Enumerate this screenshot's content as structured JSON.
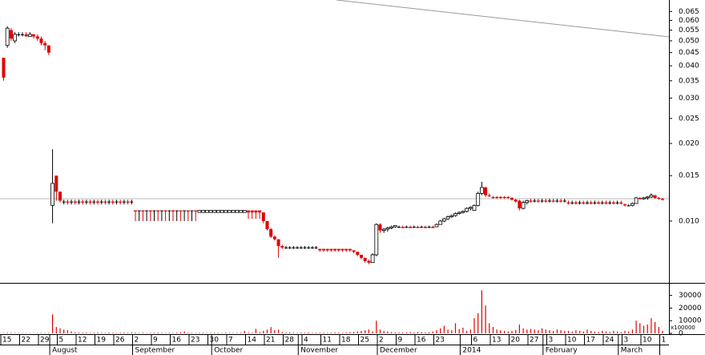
{
  "chart_data": [
    {
      "type": "candlestick",
      "log_scale": true,
      "up_color": "#000000",
      "down_color": "#e00000",
      "ylim": [
        0.0058,
        0.072
      ],
      "yticks": [
        {
          "value": 0.01,
          "label": "0.010"
        },
        0.015,
        {
          "value": 0.02,
          "label": "0.020"
        },
        0.025,
        {
          "value": 0.03,
          "label": "0.030"
        },
        0.035,
        {
          "value": 0.04,
          "label": "0.040"
        },
        0.045,
        {
          "value": 0.05,
          "label": "0.050"
        },
        0.055,
        {
          "value": 0.06,
          "label": "0.060"
        },
        0.065
      ],
      "categories": [
        "15",
        null,
        null,
        null,
        null,
        "22",
        null,
        null,
        null,
        null,
        "29",
        null,
        null,
        null,
        null,
        "5",
        null,
        null,
        null,
        null,
        "12",
        null,
        null,
        null,
        null,
        "19",
        null,
        null,
        null,
        null,
        "26",
        null,
        null,
        null,
        null,
        "2",
        null,
        null,
        null,
        null,
        "9",
        null,
        null,
        null,
        null,
        "16",
        null,
        null,
        null,
        null,
        "23",
        null,
        null,
        null,
        null,
        "30",
        null,
        null,
        null,
        null,
        "7",
        null,
        null,
        null,
        null,
        "14",
        null,
        null,
        null,
        null,
        "21",
        null,
        null,
        null,
        null,
        "28",
        null,
        null,
        null,
        null,
        "4",
        null,
        null,
        null,
        null,
        "11",
        null,
        null,
        null,
        null,
        "18",
        null,
        null,
        null,
        null,
        "25",
        null,
        null,
        null,
        null,
        "2",
        null,
        null,
        null,
        null,
        "9",
        null,
        null,
        null,
        null,
        "16",
        null,
        null,
        null,
        null,
        "23",
        null,
        null,
        null,
        null,
        null,
        null,
        null,
        null,
        null,
        "6",
        null,
        null,
        null,
        null,
        "13",
        null,
        null,
        null,
        null,
        "20",
        null,
        null,
        null,
        null,
        "27",
        null,
        null,
        null,
        null,
        "3",
        null,
        null,
        null,
        null,
        "10",
        null,
        null,
        null,
        null,
        "17",
        null,
        null,
        null,
        null,
        "24",
        null,
        null,
        null,
        null,
        "3",
        null,
        null,
        null,
        null,
        "10",
        null,
        null,
        null,
        null,
        "1"
      ],
      "month_labels": [
        null,
        null,
        null,
        null,
        null,
        null,
        null,
        null,
        null,
        null,
        null,
        null,
        null,
        "August",
        null,
        null,
        null,
        null,
        null,
        null,
        null,
        null,
        null,
        null,
        null,
        null,
        null,
        null,
        null,
        null,
        null,
        null,
        null,
        null,
        null,
        "September",
        null,
        null,
        null,
        null,
        null,
        null,
        null,
        null,
        null,
        null,
        null,
        null,
        null,
        null,
        null,
        null,
        null,
        null,
        null,
        null,
        "October",
        null,
        null,
        null,
        null,
        null,
        null,
        null,
        null,
        null,
        null,
        null,
        null,
        null,
        null,
        null,
        null,
        null,
        null,
        null,
        null,
        null,
        null,
        "November",
        null,
        null,
        null,
        null,
        null,
        null,
        null,
        null,
        null,
        null,
        null,
        null,
        null,
        null,
        null,
        null,
        null,
        null,
        null,
        null,
        "December",
        null,
        null,
        null,
        null,
        null,
        null,
        null,
        null,
        null,
        null,
        null,
        null,
        null,
        null,
        null,
        null,
        null,
        null,
        null,
        null,
        null,
        "2014",
        null,
        null,
        null,
        null,
        null,
        null,
        null,
        null,
        null,
        null,
        null,
        null,
        null,
        null,
        null,
        null,
        null,
        null,
        null,
        null,
        null,
        "February",
        null,
        null,
        null,
        null,
        null,
        null,
        null,
        null,
        null,
        null,
        null,
        null,
        null,
        null,
        null,
        null,
        null,
        null,
        null,
        "March",
        null,
        null,
        null,
        null,
        null,
        null,
        null,
        null,
        null,
        null
      ],
      "open": [
        0.043,
        0.048,
        0.055,
        0.05,
        0.053,
        0.053,
        0.053,
        0.052,
        0.053,
        0.052,
        0.051,
        0.049,
        0.048,
        0.0115,
        0.015,
        0.013,
        0.0119,
        0.0119,
        0.0119,
        0.0119,
        0.0119,
        0.0119,
        0.0119,
        0.0119,
        0.0119,
        0.0119,
        0.0119,
        0.0119,
        0.0119,
        0.0119,
        0.0119,
        0.0119,
        0.0119,
        0.0119,
        0.0119,
        0.011,
        0.011,
        0.011,
        0.011,
        0.011,
        0.011,
        0.011,
        0.011,
        0.011,
        0.011,
        0.011,
        0.011,
        0.011,
        0.011,
        0.011,
        0.011,
        0.011,
        0.0108,
        0.0108,
        0.0108,
        0.0108,
        0.0108,
        0.0108,
        0.0108,
        0.0108,
        0.0108,
        0.0108,
        0.0108,
        0.0108,
        0.0108,
        0.011,
        0.011,
        0.011,
        0.011,
        0.0108,
        0.01,
        0.0093,
        0.0087,
        0.0085,
        0.008,
        0.0079,
        0.0079,
        0.0079,
        0.0079,
        0.0079,
        0.0079,
        0.0079,
        0.0079,
        0.0079,
        0.0078,
        0.0078,
        0.0078,
        0.0078,
        0.0078,
        0.0078,
        0.0078,
        0.0078,
        0.0078,
        0.0077,
        0.0076,
        0.0074,
        0.0072,
        0.007,
        0.0069,
        0.0074,
        0.0097,
        0.0092,
        0.0093,
        0.0094,
        0.0095,
        0.0095,
        0.0095,
        0.0095,
        0.0095,
        0.0095,
        0.0095,
        0.0095,
        0.0095,
        0.0095,
        0.0095,
        0.0095,
        0.0097,
        0.01,
        0.0102,
        0.0104,
        0.0105,
        0.0107,
        0.0108,
        0.0109,
        0.0112,
        0.011,
        0.0115,
        0.0128,
        0.0135,
        0.0126,
        0.0124,
        0.0124,
        0.0124,
        0.0124,
        0.0124,
        0.0123,
        0.0121,
        0.012,
        0.0112,
        0.0118,
        0.012,
        0.012,
        0.012,
        0.012,
        0.012,
        0.012,
        0.012,
        0.012,
        0.012,
        0.012,
        0.0118,
        0.0118,
        0.0118,
        0.0118,
        0.0118,
        0.0118,
        0.0118,
        0.0118,
        0.0118,
        0.0118,
        0.0118,
        0.0118,
        0.0118,
        0.0118,
        0.0118,
        0.0116,
        0.0115,
        0.0115,
        0.0117,
        0.0123,
        0.0122,
        0.0123,
        0.0124,
        0.0126,
        0.0123,
        0.0122
      ],
      "high": [
        0.043,
        0.057,
        0.056,
        0.054,
        0.054,
        0.054,
        0.054,
        0.054,
        0.053,
        0.053,
        0.052,
        0.05,
        0.048,
        0.019,
        0.015,
        0.013,
        0.0121,
        0.0121,
        0.0121,
        0.0121,
        0.0121,
        0.0121,
        0.0121,
        0.0121,
        0.0121,
        0.0121,
        0.0121,
        0.0121,
        0.0121,
        0.0121,
        0.0121,
        0.0121,
        0.0121,
        0.0121,
        0.0121,
        0.011,
        0.011,
        0.011,
        0.011,
        0.011,
        0.011,
        0.011,
        0.011,
        0.011,
        0.011,
        0.011,
        0.011,
        0.011,
        0.011,
        0.011,
        0.011,
        0.011,
        0.011,
        0.011,
        0.011,
        0.011,
        0.011,
        0.011,
        0.011,
        0.011,
        0.011,
        0.011,
        0.011,
        0.011,
        0.011,
        0.011,
        0.011,
        0.011,
        0.011,
        0.0108,
        0.01,
        0.0094,
        0.0088,
        0.0085,
        0.0081,
        0.008,
        0.008,
        0.008,
        0.008,
        0.008,
        0.008,
        0.008,
        0.008,
        0.008,
        0.0078,
        0.0078,
        0.0078,
        0.0078,
        0.0078,
        0.0078,
        0.0078,
        0.0078,
        0.0078,
        0.0077,
        0.0076,
        0.0074,
        0.0072,
        0.0071,
        0.0075,
        0.0098,
        0.0098,
        0.0094,
        0.0095,
        0.0096,
        0.0096,
        0.0096,
        0.0096,
        0.0096,
        0.0096,
        0.0096,
        0.0096,
        0.0096,
        0.0096,
        0.0096,
        0.0096,
        0.0098,
        0.0101,
        0.0103,
        0.0105,
        0.0106,
        0.0108,
        0.0109,
        0.011,
        0.0113,
        0.0114,
        0.0116,
        0.013,
        0.0142,
        0.0136,
        0.0128,
        0.0125,
        0.0125,
        0.0125,
        0.0125,
        0.0125,
        0.0124,
        0.0122,
        0.0121,
        0.012,
        0.0121,
        0.0122,
        0.0122,
        0.0122,
        0.0122,
        0.0122,
        0.0122,
        0.0122,
        0.0122,
        0.0122,
        0.0122,
        0.012,
        0.012,
        0.012,
        0.012,
        0.012,
        0.012,
        0.012,
        0.012,
        0.012,
        0.012,
        0.012,
        0.012,
        0.012,
        0.012,
        0.012,
        0.0117,
        0.0116,
        0.0118,
        0.0124,
        0.0124,
        0.0124,
        0.0125,
        0.0128,
        0.0126,
        0.0124,
        0.0123
      ],
      "low": [
        0.035,
        0.047,
        0.05,
        0.049,
        0.052,
        0.052,
        0.052,
        0.052,
        0.051,
        0.05,
        0.048,
        0.046,
        0.044,
        0.0098,
        0.012,
        0.0118,
        0.0116,
        0.0116,
        0.0116,
        0.0116,
        0.0116,
        0.0116,
        0.0116,
        0.0116,
        0.0116,
        0.0116,
        0.0116,
        0.0116,
        0.0116,
        0.0116,
        0.0116,
        0.0116,
        0.0116,
        0.0116,
        0.0116,
        0.01,
        0.01,
        0.01,
        0.01,
        0.01,
        0.01,
        0.01,
        0.01,
        0.01,
        0.01,
        0.01,
        0.01,
        0.01,
        0.01,
        0.01,
        0.01,
        0.01,
        0.0108,
        0.0108,
        0.0108,
        0.0108,
        0.0108,
        0.0108,
        0.0108,
        0.0108,
        0.0108,
        0.0108,
        0.0108,
        0.0108,
        0.0108,
        0.0102,
        0.0102,
        0.0102,
        0.0102,
        0.0098,
        0.0092,
        0.0086,
        0.0084,
        0.0072,
        0.0078,
        0.0078,
        0.0078,
        0.0078,
        0.0078,
        0.0078,
        0.0078,
        0.0078,
        0.0078,
        0.0078,
        0.0076,
        0.0076,
        0.0076,
        0.0076,
        0.0076,
        0.0076,
        0.0076,
        0.0076,
        0.0076,
        0.0075,
        0.0073,
        0.0071,
        0.0069,
        0.0068,
        0.0069,
        0.0073,
        0.009,
        0.009,
        0.0091,
        0.0093,
        0.0094,
        0.0094,
        0.0094,
        0.0094,
        0.0094,
        0.0094,
        0.0094,
        0.0094,
        0.0094,
        0.0094,
        0.0094,
        0.0095,
        0.0097,
        0.0099,
        0.0101,
        0.0103,
        0.0104,
        0.0106,
        0.0107,
        0.0108,
        0.011,
        0.011,
        0.0114,
        0.0126,
        0.0124,
        0.0124,
        0.0122,
        0.0122,
        0.0122,
        0.0122,
        0.0122,
        0.012,
        0.0118,
        0.011,
        0.0111,
        0.0116,
        0.0118,
        0.0118,
        0.0118,
        0.0118,
        0.0118,
        0.0118,
        0.0118,
        0.0118,
        0.0118,
        0.0118,
        0.0116,
        0.0116,
        0.0116,
        0.0116,
        0.0116,
        0.0116,
        0.0116,
        0.0116,
        0.0116,
        0.0116,
        0.0116,
        0.0116,
        0.0116,
        0.0116,
        0.0116,
        0.0114,
        0.0114,
        0.0114,
        0.0117,
        0.0121,
        0.0121,
        0.0121,
        0.0123,
        0.0122,
        0.0121,
        0.012
      ],
      "close": [
        0.036,
        0.056,
        0.051,
        0.053,
        0.053,
        0.053,
        0.052,
        0.053,
        0.052,
        0.051,
        0.049,
        0.048,
        0.045,
        0.014,
        0.013,
        0.012,
        0.0119,
        0.0118,
        0.0119,
        0.0118,
        0.0119,
        0.0118,
        0.0119,
        0.0118,
        0.0119,
        0.0118,
        0.0119,
        0.0118,
        0.0119,
        0.0118,
        0.0119,
        0.0118,
        0.0119,
        0.0118,
        0.0119,
        0.0109,
        0.011,
        0.0109,
        0.011,
        0.0109,
        0.011,
        0.0109,
        0.011,
        0.0109,
        0.011,
        0.0109,
        0.011,
        0.0109,
        0.011,
        0.0109,
        0.011,
        0.0109,
        0.011,
        0.011,
        0.011,
        0.011,
        0.011,
        0.011,
        0.011,
        0.011,
        0.011,
        0.011,
        0.011,
        0.011,
        0.011,
        0.0108,
        0.0108,
        0.0108,
        0.0108,
        0.01,
        0.0093,
        0.0087,
        0.0085,
        0.008,
        0.0079,
        0.0079,
        0.0079,
        0.0079,
        0.0079,
        0.0079,
        0.0079,
        0.0079,
        0.0079,
        0.0079,
        0.0077,
        0.0077,
        0.0077,
        0.0077,
        0.0077,
        0.0077,
        0.0077,
        0.0077,
        0.0077,
        0.0076,
        0.0074,
        0.0072,
        0.007,
        0.0069,
        0.0074,
        0.0097,
        0.0092,
        0.0093,
        0.0094,
        0.0095,
        0.0096,
        0.0095,
        0.0094,
        0.0095,
        0.0094,
        0.0095,
        0.0094,
        0.0095,
        0.0094,
        0.0095,
        0.0094,
        0.0097,
        0.01,
        0.0102,
        0.0104,
        0.0105,
        0.0107,
        0.0108,
        0.0109,
        0.0112,
        0.0113,
        0.0115,
        0.0128,
        0.0135,
        0.0126,
        0.0125,
        0.0123,
        0.0123,
        0.0123,
        0.0123,
        0.0123,
        0.0121,
        0.0119,
        0.0112,
        0.0118,
        0.012,
        0.0119,
        0.012,
        0.0119,
        0.012,
        0.0119,
        0.012,
        0.0119,
        0.012,
        0.0119,
        0.012,
        0.0117,
        0.0118,
        0.0117,
        0.0118,
        0.0117,
        0.0118,
        0.0117,
        0.0118,
        0.0117,
        0.0118,
        0.0117,
        0.0118,
        0.0117,
        0.0118,
        0.0117,
        0.0115,
        0.0115,
        0.0117,
        0.0123,
        0.0122,
        0.0123,
        0.0124,
        0.0126,
        0.0123,
        0.0122,
        0.0121
      ]
    },
    {
      "type": "bar",
      "color": "#e00000",
      "annotation": "x100000",
      "ylim": [
        0,
        38000
      ],
      "yticks": [
        0,
        10000,
        20000,
        30000
      ],
      "values": [
        300,
        500,
        400,
        300,
        300,
        200,
        200,
        200,
        200,
        300,
        400,
        300,
        400,
        15000,
        5000,
        4000,
        3000,
        2500,
        1500,
        800,
        600,
        500,
        600,
        400,
        500,
        600,
        500,
        400,
        600,
        500,
        400,
        500,
        600,
        500,
        800,
        600,
        400,
        500,
        300,
        400,
        500,
        600,
        400,
        300,
        500,
        400,
        600,
        800,
        1500,
        500,
        400,
        300,
        400,
        500,
        300,
        400,
        500,
        400,
        300,
        500,
        400,
        300,
        400,
        500,
        2000,
        600,
        500,
        3500,
        1000,
        2000,
        3000,
        5000,
        2500,
        3000,
        1000,
        600,
        800,
        500,
        400,
        600,
        500,
        700,
        400,
        500,
        500,
        600,
        400,
        500,
        800,
        600,
        500,
        700,
        900,
        1200,
        1500,
        2000,
        2500,
        3000,
        1500,
        10000,
        3000,
        2000,
        1500,
        1000,
        800,
        700,
        600,
        800,
        900,
        700,
        1200,
        1000,
        800,
        900,
        1500,
        2500,
        4000,
        6000,
        3000,
        2500,
        8000,
        3500,
        4500,
        2000,
        3000,
        12000,
        16000,
        34000,
        22000,
        8000,
        5000,
        3000,
        2500,
        2000,
        1500,
        2000,
        2500,
        7000,
        4000,
        3000,
        3500,
        3000,
        2500,
        4000,
        3000,
        2500,
        2000,
        3000,
        2500,
        2000,
        2000,
        1500,
        2500,
        2000,
        1500,
        3000,
        2000,
        1500,
        1000,
        2000,
        1500,
        1000,
        2000,
        1500,
        1000,
        2000,
        1500,
        3000,
        10000,
        8000,
        6000,
        7000,
        12000,
        9000,
        5000,
        2000
      ]
    }
  ]
}
